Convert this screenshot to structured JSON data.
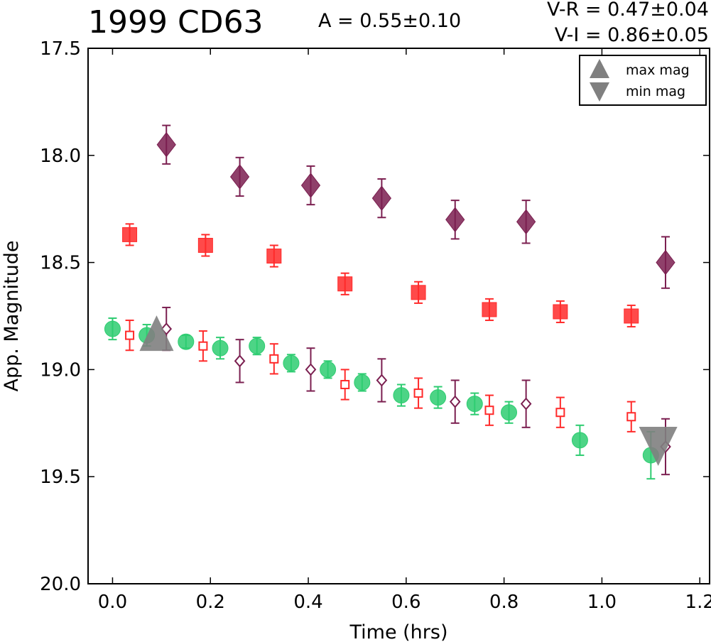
{
  "chart_data": {
    "type": "scatter",
    "title": "1999 CD63",
    "annotations": {
      "amplitude": "A  = 0.55±0.10",
      "v_r": "V-R = 0.47±0.04",
      "v_i": "V-I  = 0.86±0.05"
    },
    "xlabel": "Time (hrs)",
    "ylabel": "App. Magnitude",
    "xlim": [
      -0.05,
      1.22
    ],
    "ylim": [
      20.0,
      17.5
    ],
    "y_inverted": true,
    "grid": false,
    "x_ticks": [
      "0.0",
      "0.2",
      "0.4",
      "0.6",
      "0.8",
      "1.0",
      "1.2"
    ],
    "y_ticks": [
      "17.5",
      "18.0",
      "18.5",
      "19.0",
      "19.5",
      "20.0"
    ],
    "legend": {
      "placement": "top-right",
      "entries": [
        {
          "label": "max mag",
          "marker": "triangle-up",
          "color": "#808080"
        },
        {
          "label": "min mag",
          "marker": "triangle-down",
          "color": "#808080"
        }
      ]
    },
    "series": [
      {
        "marker": "circle",
        "color": "#2ecc71",
        "filled": true,
        "x": [
          0.0,
          0.07,
          0.15,
          0.22,
          0.295,
          0.365,
          0.44,
          0.51,
          0.59,
          0.665,
          0.74,
          0.81,
          0.955,
          1.1
        ],
        "y": [
          18.81,
          18.84,
          18.87,
          18.9,
          18.89,
          18.97,
          19.0,
          19.06,
          19.12,
          19.13,
          19.16,
          19.2,
          19.33,
          19.4
        ],
        "yerr": [
          0.05,
          0.05,
          0.03,
          0.05,
          0.04,
          0.04,
          0.04,
          0.04,
          0.05,
          0.05,
          0.05,
          0.05,
          0.07,
          0.11
        ]
      },
      {
        "marker": "square",
        "color": "#ff2a2a",
        "filled": true,
        "x": [
          0.035,
          0.19,
          0.33,
          0.475,
          0.625,
          0.77,
          0.915,
          1.06
        ],
        "y": [
          18.37,
          18.42,
          18.47,
          18.6,
          18.64,
          18.72,
          18.73,
          18.75
        ],
        "yerr": [
          0.05,
          0.05,
          0.05,
          0.05,
          0.05,
          0.05,
          0.05,
          0.05
        ]
      },
      {
        "marker": "square",
        "color": "#ff2a2a",
        "filled": false,
        "x": [
          0.035,
          0.185,
          0.33,
          0.475,
          0.625,
          0.77,
          0.915,
          1.06
        ],
        "y": [
          18.84,
          18.89,
          18.95,
          19.07,
          19.11,
          19.19,
          19.2,
          19.22
        ],
        "yerr": [
          0.07,
          0.07,
          0.07,
          0.07,
          0.07,
          0.07,
          0.07,
          0.07
        ]
      },
      {
        "marker": "diamond",
        "color": "#7b1f50",
        "filled": true,
        "x": [
          0.11,
          0.26,
          0.405,
          0.55,
          0.7,
          0.845,
          1.13
        ],
        "y": [
          17.95,
          18.1,
          18.14,
          18.2,
          18.3,
          18.31,
          18.5
        ],
        "yerr": [
          0.09,
          0.09,
          0.09,
          0.09,
          0.09,
          0.1,
          0.12
        ]
      },
      {
        "marker": "diamond",
        "color": "#7b1f50",
        "filled": false,
        "x": [
          0.11,
          0.26,
          0.405,
          0.55,
          0.7,
          0.845,
          1.13
        ],
        "y": [
          18.81,
          18.96,
          19.0,
          19.05,
          19.15,
          19.16,
          19.36
        ],
        "yerr": [
          0.1,
          0.1,
          0.1,
          0.1,
          0.1,
          0.11,
          0.13
        ]
      }
    ],
    "extrema": [
      {
        "marker": "triangle-up",
        "color": "#808080",
        "x": 0.09,
        "y": 18.84
      },
      {
        "marker": "triangle-down",
        "color": "#808080",
        "x": 1.115,
        "y": 19.36
      }
    ]
  }
}
